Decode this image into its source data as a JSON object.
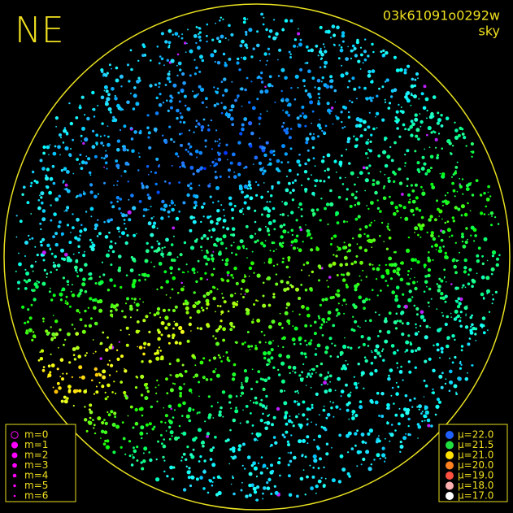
{
  "header": {
    "direction": "NE",
    "frame_id": "03k61091o0292w",
    "mode": "sky"
  },
  "magnitude_legend": [
    {
      "label": "m=0",
      "color": "#ff00ff"
    },
    {
      "label": "m=1",
      "color": "#ff00ff"
    },
    {
      "label": "m=2",
      "color": "#ff00ff"
    },
    {
      "label": "m=3",
      "color": "#ff00ff"
    },
    {
      "label": "m=4",
      "color": "#ff00ff"
    },
    {
      "label": "m=5",
      "color": "#ff00ff"
    },
    {
      "label": "m=6",
      "color": "#ff00ff"
    }
  ],
  "brightness_legend": [
    {
      "label": "μ=22.0",
      "color": "#2060ff"
    },
    {
      "label": "μ=21.5",
      "color": "#20e040"
    },
    {
      "label": "μ=21.0",
      "color": "#ffe000"
    },
    {
      "label": "μ=20.0",
      "color": "#ff8020"
    },
    {
      "label": "μ=19.0",
      "color": "#ff5040"
    },
    {
      "label": "μ=18.0",
      "color": "#ffb0b0"
    },
    {
      "label": "μ=17.0",
      "color": "#ffffff"
    }
  ]
}
